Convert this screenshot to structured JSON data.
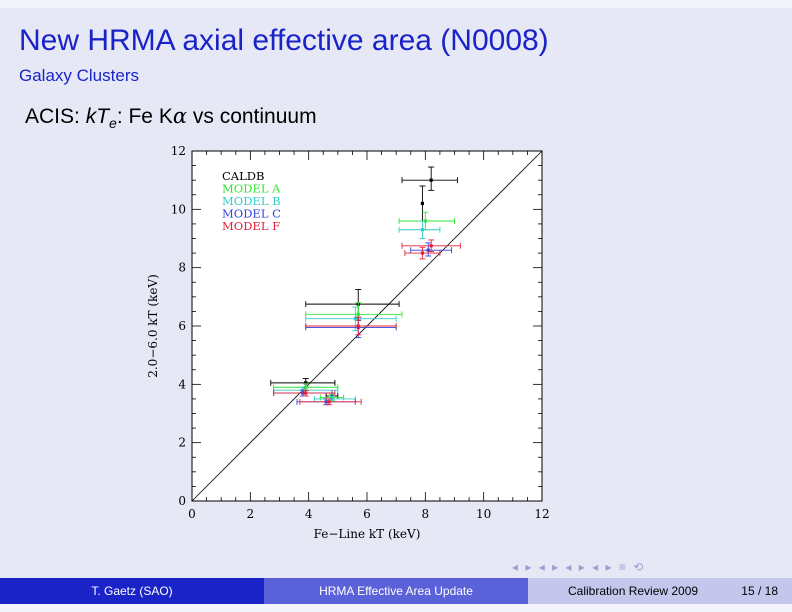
{
  "slide": {
    "title": "New HRMA axial effective area (N0008)",
    "subtitle": "Galaxy Clusters",
    "heading": {
      "prefix": "ACIS: ",
      "kt": "kT",
      "sub": "e",
      "mid": ": Fe K",
      "alpha": "α",
      "suffix": " vs continuum"
    }
  },
  "footer": {
    "author": "T. Gaetz (SAO)",
    "talk": "HRMA Effective Area Update",
    "event": "Calibration Review 2009",
    "page": "15 / 18"
  },
  "nav_symbols": "◂ ▸ ◂ ▸ ◂ ▸ ◂ ▸ ≡ ⟲",
  "chart_data": {
    "type": "scatter",
    "xlabel": "Fe−Line kT (keV)",
    "ylabel": "2.0−6.0 kT (keV)",
    "xlim": [
      0,
      12
    ],
    "ylim": [
      0,
      12
    ],
    "xticks": [
      0,
      2,
      4,
      6,
      8,
      10,
      12
    ],
    "yticks": [
      0,
      2,
      4,
      6,
      8,
      10,
      12
    ],
    "identity_line": true,
    "legend_position": "top-left",
    "series": [
      {
        "name": "CALDB",
        "color": "#000000",
        "points": [
          {
            "x": 8.2,
            "y": 11.0,
            "xerr": [
              1.0,
              0.9
            ],
            "yerr": [
              0.35,
              0.45
            ]
          },
          {
            "x": 7.9,
            "y": 10.2,
            "xerr": [
              0.0,
              0.0
            ],
            "yerr": [
              0.6,
              0.6
            ]
          },
          {
            "x": 5.7,
            "y": 6.75,
            "xerr": [
              1.8,
              1.4
            ],
            "yerr": [
              0.55,
              0.5
            ]
          },
          {
            "x": 3.9,
            "y": 4.05,
            "xerr": [
              1.2,
              1.0
            ],
            "yerr": [
              0.15,
              0.15
            ]
          },
          {
            "x": 4.8,
            "y": 3.6,
            "xerr": [
              0.2,
              0.2
            ],
            "yerr": [
              0.1,
              0.1
            ]
          }
        ]
      },
      {
        "name": "MODEL A",
        "color": "#33e633",
        "points": [
          {
            "x": 8.0,
            "y": 9.6,
            "xerr": [
              0.9,
              1.0
            ],
            "yerr": [
              0.3,
              0.3
            ]
          },
          {
            "x": 5.7,
            "y": 6.4,
            "xerr": [
              1.8,
              1.5
            ],
            "yerr": [
              0.4,
              0.4
            ]
          },
          {
            "x": 3.9,
            "y": 3.9,
            "xerr": [
              1.1,
              1.1
            ],
            "yerr": [
              0.12,
              0.12
            ]
          },
          {
            "x": 4.8,
            "y": 3.55,
            "xerr": [
              0.4,
              0.4
            ],
            "yerr": [
              0.1,
              0.1
            ]
          }
        ]
      },
      {
        "name": "MODEL B",
        "color": "#33cccc",
        "points": [
          {
            "x": 7.9,
            "y": 9.3,
            "xerr": [
              0.8,
              0.6
            ],
            "yerr": [
              0.3,
              0.3
            ]
          },
          {
            "x": 5.6,
            "y": 6.25,
            "xerr": [
              1.7,
              1.4
            ],
            "yerr": [
              0.4,
              0.4
            ]
          },
          {
            "x": 3.8,
            "y": 3.8,
            "xerr": [
              1.0,
              1.2
            ],
            "yerr": [
              0.1,
              0.1
            ]
          },
          {
            "x": 4.8,
            "y": 3.5,
            "xerr": [
              0.6,
              0.8
            ],
            "yerr": [
              0.1,
              0.1
            ]
          }
        ]
      },
      {
        "name": "MODEL C",
        "color": "#3344dd",
        "points": [
          {
            "x": 8.1,
            "y": 8.6,
            "xerr": [
              0.6,
              0.8
            ],
            "yerr": [
              0.2,
              0.25
            ]
          },
          {
            "x": 5.7,
            "y": 5.95,
            "xerr": [
              1.8,
              1.3
            ],
            "yerr": [
              0.35,
              0.35
            ]
          },
          {
            "x": 3.8,
            "y": 3.7,
            "xerr": [
              1.0,
              1.0
            ],
            "yerr": [
              0.1,
              0.1
            ]
          },
          {
            "x": 4.6,
            "y": 3.4,
            "xerr": [
              1.0,
              1.0
            ],
            "yerr": [
              0.1,
              0.1
            ]
          }
        ]
      },
      {
        "name": "MODEL F",
        "color": "#e6223a",
        "points": [
          {
            "x": 8.2,
            "y": 8.75,
            "xerr": [
              1.0,
              1.0
            ],
            "yerr": [
              0.2,
              0.2
            ]
          },
          {
            "x": 7.9,
            "y": 8.5,
            "xerr": [
              0.6,
              0.6
            ],
            "yerr": [
              0.2,
              0.2
            ]
          },
          {
            "x": 5.7,
            "y": 6.0,
            "xerr": [
              1.8,
              1.3
            ],
            "yerr": [
              0.3,
              0.3
            ]
          },
          {
            "x": 3.9,
            "y": 3.7,
            "xerr": [
              1.1,
              1.0
            ],
            "yerr": [
              0.1,
              0.1
            ]
          },
          {
            "x": 4.7,
            "y": 3.4,
            "xerr": [
              1.0,
              1.1
            ],
            "yerr": [
              0.1,
              0.1
            ]
          }
        ]
      }
    ]
  }
}
